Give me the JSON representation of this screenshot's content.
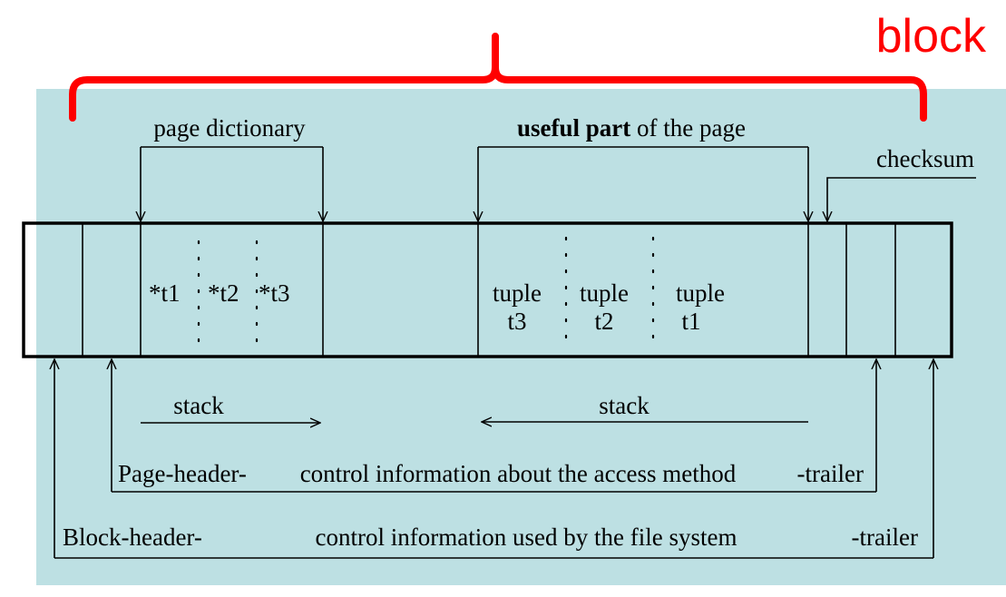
{
  "block_label": "block",
  "labels": {
    "page_dictionary": "page dictionary",
    "useful_part_bold": "useful part",
    "useful_part_rest": " of the page",
    "checksum": "checksum",
    "stack_left": "stack",
    "stack_right": "stack",
    "page_header": "Page-header-",
    "page_control": "control information about the access method",
    "page_trailer": "-trailer",
    "block_header": "Block-header-",
    "block_control": "control information used by the file system",
    "block_trailer": "-trailer"
  },
  "pointers": [
    "*t1",
    "*t2",
    "*t3"
  ],
  "tuples": [
    {
      "line1": "tuple",
      "line2": "t3"
    },
    {
      "line1": "tuple",
      "line2": "t2"
    },
    {
      "line1": "tuple",
      "line2": "t1"
    }
  ],
  "colors": {
    "background": "#bde0e3",
    "brace": "#ff0000",
    "block_text": "#ff0000",
    "lines": "#000000"
  }
}
